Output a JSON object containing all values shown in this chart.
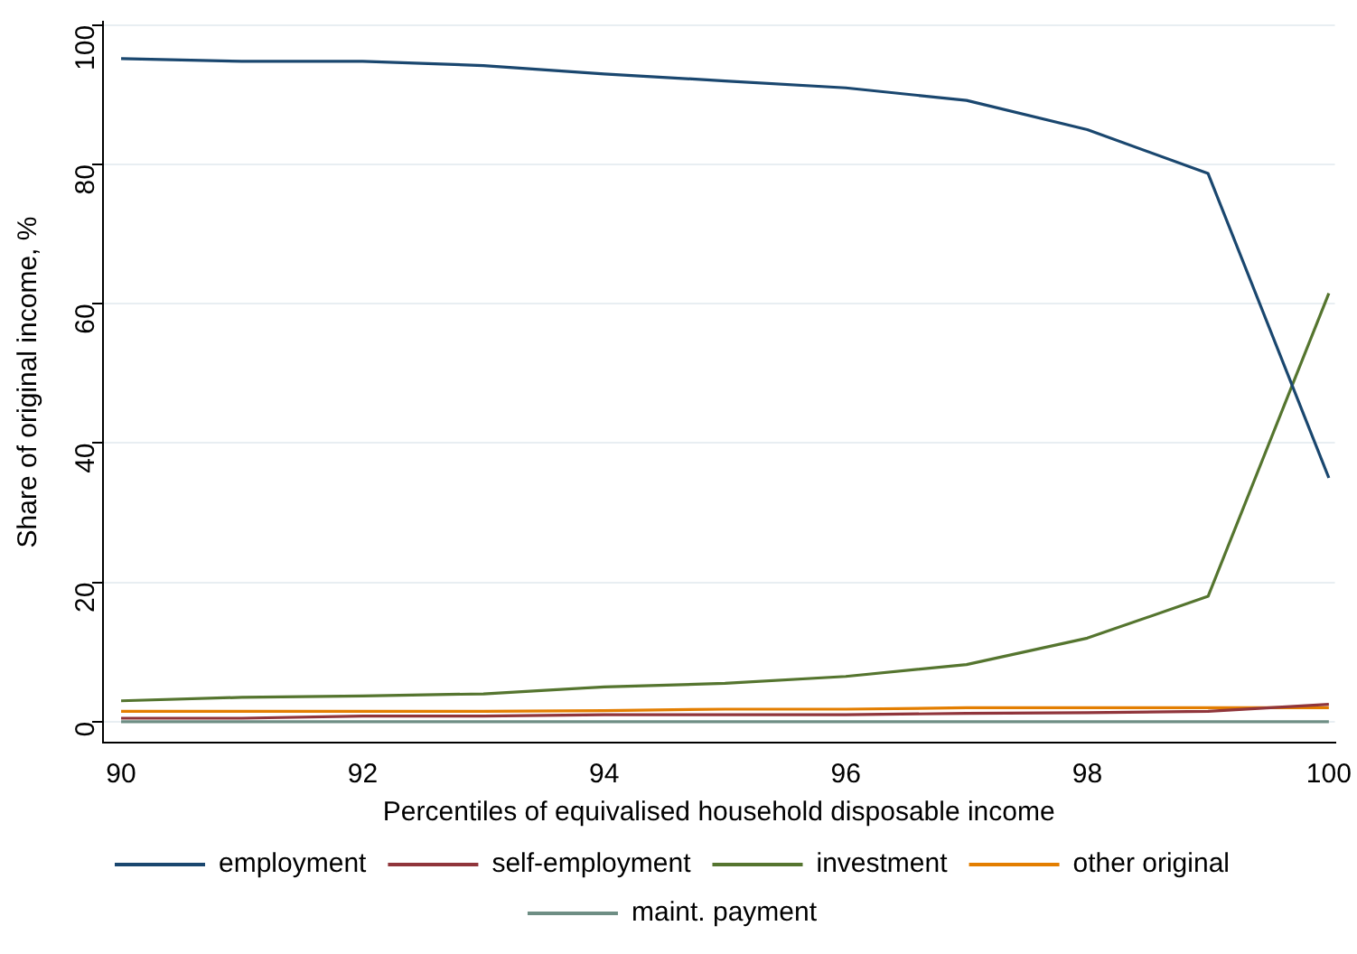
{
  "chart_data": {
    "type": "line",
    "xlabel": "Percentiles of equivalised household disposable income",
    "ylabel": "Share of original income, %",
    "x": [
      90,
      91,
      92,
      93,
      94,
      95,
      96,
      97,
      98,
      99,
      100
    ],
    "series": [
      {
        "name": "employment",
        "color": "#1a476f",
        "values": [
          95.2,
          94.8,
          94.8,
          94.2,
          93,
          92,
          91,
          89.2,
          85,
          78.7,
          35
        ]
      },
      {
        "name": "self-employment",
        "color": "#90353b",
        "values": [
          0.5,
          0.5,
          0.8,
          0.8,
          1,
          1,
          1,
          1.2,
          1.3,
          1.5,
          2.5
        ]
      },
      {
        "name": "investment",
        "color": "#55752f",
        "values": [
          3,
          3.5,
          3.7,
          4,
          5,
          5.5,
          6.5,
          8.2,
          12,
          18,
          61.5
        ]
      },
      {
        "name": "other original",
        "color": "#e37e00",
        "values": [
          1.5,
          1.5,
          1.5,
          1.5,
          1.6,
          1.8,
          1.8,
          2,
          2,
          2,
          2
        ]
      },
      {
        "name": "maint. payment",
        "color": "#6e8e84",
        "values": [
          0,
          0,
          0,
          0,
          0,
          0,
          0,
          0,
          0,
          0,
          0
        ]
      }
    ],
    "xlim": [
      89.85,
      100.05
    ],
    "xticks": [
      90,
      92,
      94,
      96,
      98,
      100
    ],
    "ylim": [
      -3,
      100.5
    ],
    "yticks": [
      0,
      20,
      40,
      60,
      80,
      100
    ],
    "grid": "y",
    "legend": "bottom",
    "marker": "none",
    "line_style": "solid"
  }
}
